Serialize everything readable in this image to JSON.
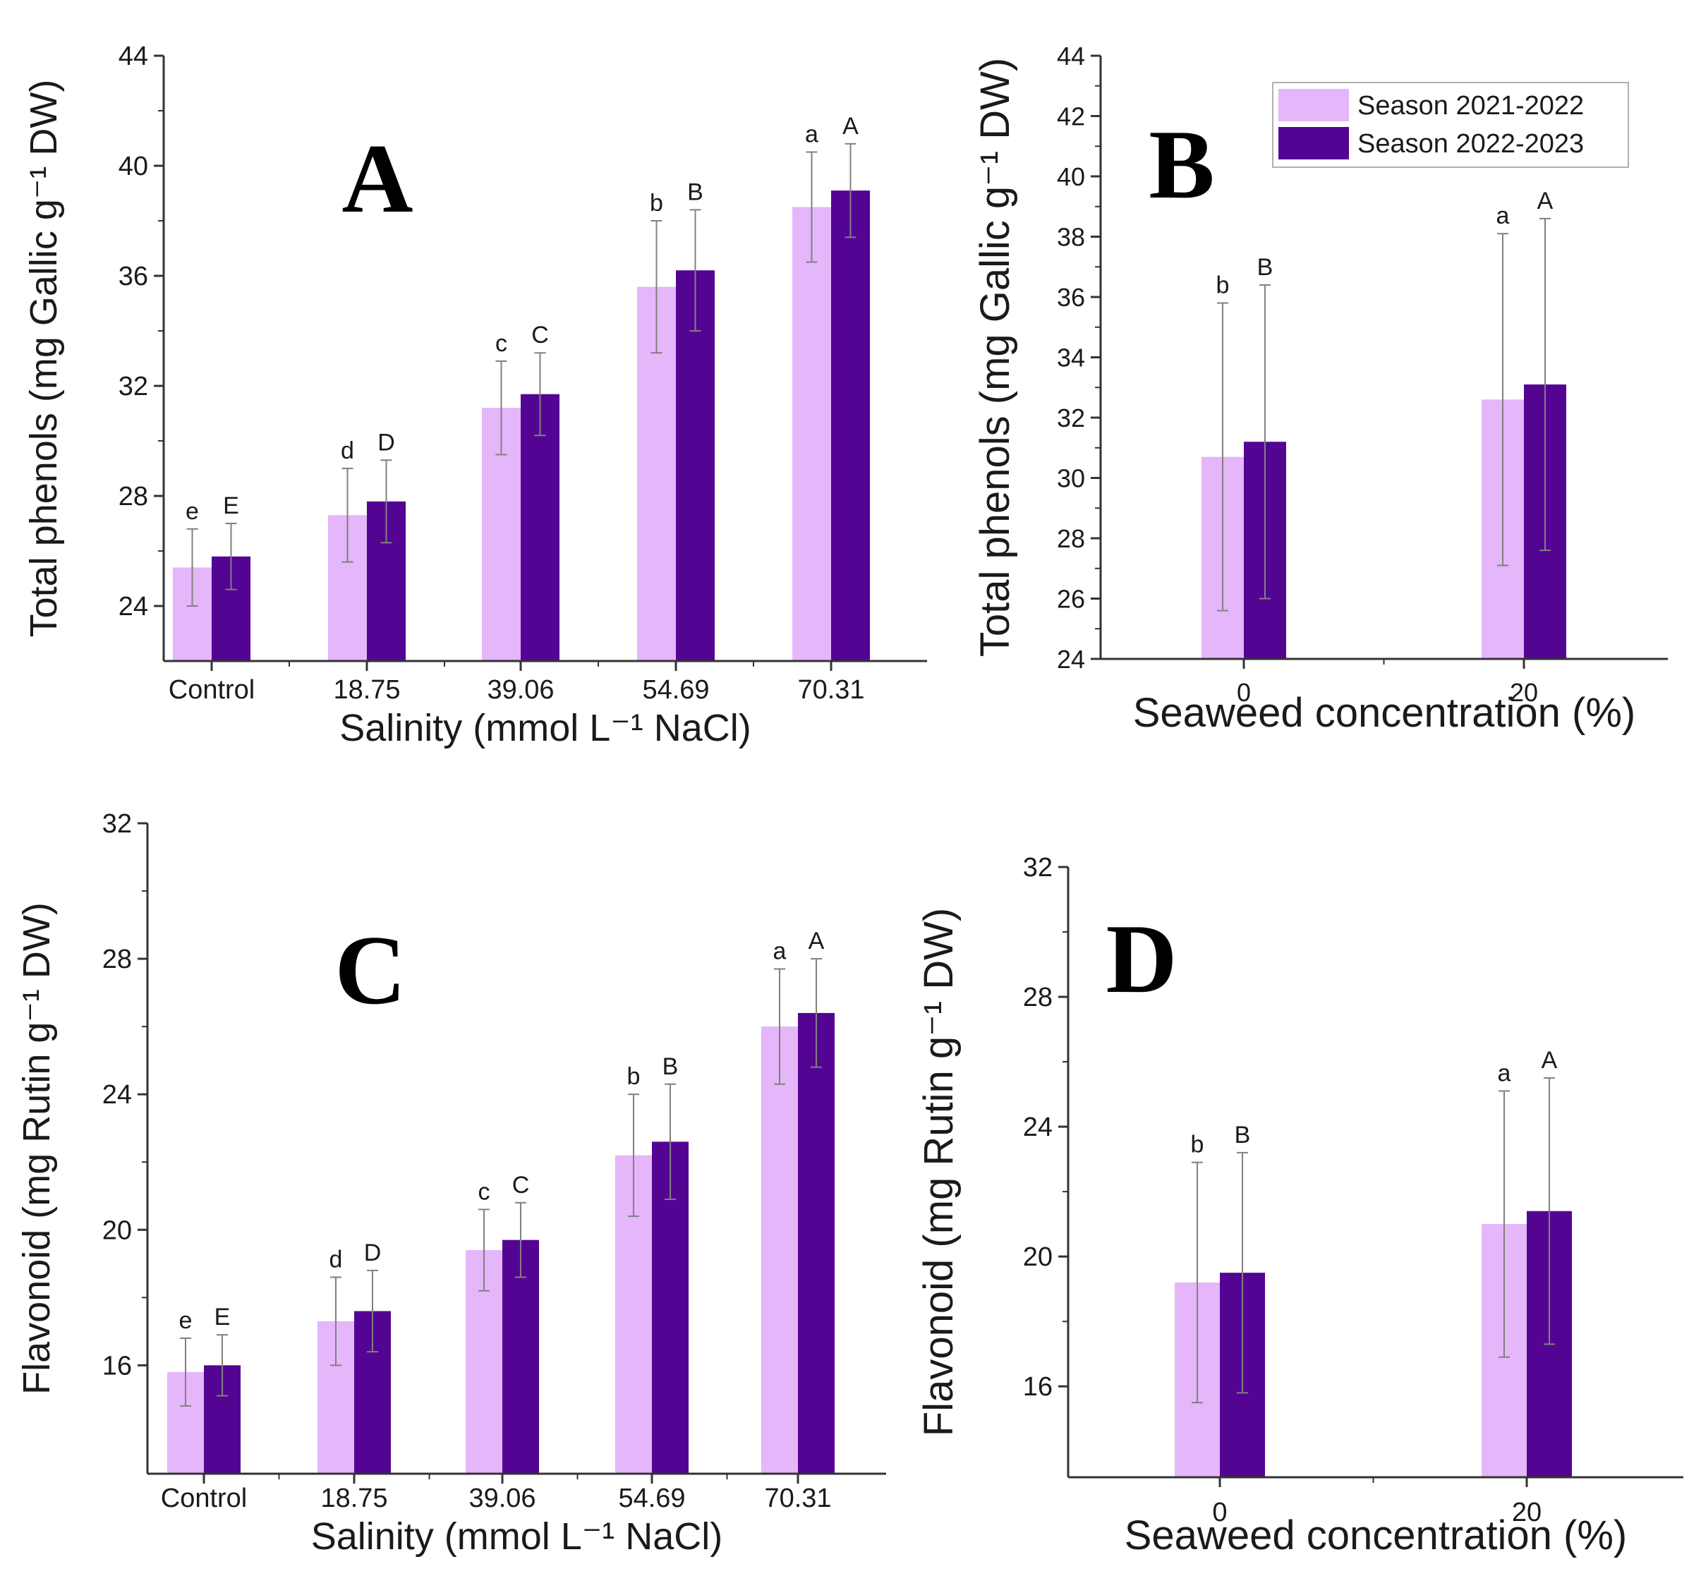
{
  "colors": {
    "season1": "#e5b6fa",
    "season2": "#540493",
    "axis": "#333333",
    "error_bar": "#808080"
  },
  "legend": {
    "items": [
      {
        "label": "Season 2021-2022",
        "color": "#e5b6fa"
      },
      {
        "label": "Season 2022-2023",
        "color": "#540493"
      }
    ]
  },
  "chart_data": [
    {
      "panel": "A",
      "type": "bar",
      "xlabel": "Salinity (mmol L⁻¹ NaCl)",
      "ylabel": "Total phenols (mg Gallic g⁻¹ DW)",
      "ylim": [
        22,
        44
      ],
      "yticks": [
        24,
        28,
        32,
        36,
        40,
        44
      ],
      "categories": [
        "Control",
        "18.75",
        "39.06",
        "54.69",
        "70.31"
      ],
      "series": [
        {
          "name": "Season 2021-2022",
          "values": [
            25.4,
            27.3,
            31.2,
            35.6,
            38.5
          ],
          "errors": [
            1.4,
            1.7,
            1.7,
            2.4,
            2.0
          ],
          "letters": [
            "e",
            "d",
            "c",
            "b",
            "a"
          ]
        },
        {
          "name": "Season 2022-2023",
          "values": [
            25.8,
            27.8,
            31.7,
            36.2,
            39.1
          ],
          "errors": [
            1.2,
            1.5,
            1.5,
            2.2,
            1.7
          ],
          "letters": [
            "E",
            "D",
            "C",
            "B",
            "A"
          ]
        }
      ]
    },
    {
      "panel": "B",
      "type": "bar",
      "xlabel": "Seaweed concentration (%)",
      "ylabel": "Total phenols (mg Gallic g⁻¹ DW)",
      "ylim": [
        24,
        44
      ],
      "yticks": [
        24,
        26,
        28,
        30,
        32,
        34,
        36,
        38,
        40,
        42,
        44
      ],
      "categories": [
        "0",
        "20"
      ],
      "legend_position": "top-right",
      "series": [
        {
          "name": "Season 2021-2022",
          "values": [
            30.7,
            32.6
          ],
          "errors": [
            5.1,
            5.5
          ],
          "letters": [
            "b",
            "a"
          ]
        },
        {
          "name": "Season 2022-2023",
          "values": [
            31.2,
            33.1
          ],
          "errors": [
            5.2,
            5.5
          ],
          "letters": [
            "B",
            "A"
          ]
        }
      ]
    },
    {
      "panel": "C",
      "type": "bar",
      "xlabel": "Salinity (mmol L⁻¹ NaCl)",
      "ylabel": "Flavonoid (mg Rutin g⁻¹ DW)",
      "ylim": [
        12.8,
        32
      ],
      "yticks": [
        16,
        20,
        24,
        28,
        32
      ],
      "categories": [
        "Control",
        "18.75",
        "39.06",
        "54.69",
        "70.31"
      ],
      "series": [
        {
          "name": "Season 2021-2022",
          "values": [
            15.8,
            17.3,
            19.4,
            22.2,
            26.0
          ],
          "errors": [
            1.0,
            1.3,
            1.2,
            1.8,
            1.7
          ],
          "letters": [
            "e",
            "d",
            "c",
            "b",
            "a"
          ]
        },
        {
          "name": "Season 2022-2023",
          "values": [
            16.0,
            17.6,
            19.7,
            22.6,
            26.4
          ],
          "errors": [
            0.9,
            1.2,
            1.1,
            1.7,
            1.6
          ],
          "letters": [
            "E",
            "D",
            "C",
            "B",
            "A"
          ]
        }
      ]
    },
    {
      "panel": "D",
      "type": "bar",
      "xlabel": "Seaweed concentration (%)",
      "ylabel": "Flavonoid (mg Rutin g⁻¹ DW)",
      "ylim": [
        13.2,
        32
      ],
      "yticks": [
        16,
        20,
        24,
        28,
        32
      ],
      "categories": [
        "0",
        "20"
      ],
      "series": [
        {
          "name": "Season 2021-2022",
          "values": [
            19.2,
            21.0
          ],
          "errors": [
            3.7,
            4.1
          ],
          "letters": [
            "b",
            "a"
          ]
        },
        {
          "name": "Season 2022-2023",
          "values": [
            19.5,
            21.4
          ],
          "errors": [
            3.7,
            4.1
          ],
          "letters": [
            "B",
            "A"
          ]
        }
      ]
    }
  ]
}
